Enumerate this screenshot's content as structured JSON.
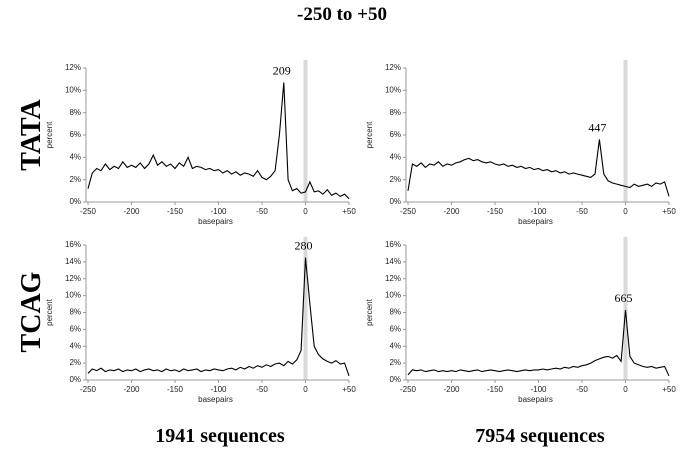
{
  "title": "-250 to +50",
  "row_labels": [
    "TATA",
    "TCAG"
  ],
  "column_labels": [
    "1941 sequences",
    "7954 sequences"
  ],
  "chart_data": [
    {
      "type": "line",
      "xlabel": "basepairs",
      "ylabel": "percent",
      "x": [
        -250,
        -245,
        -240,
        -235,
        -230,
        -225,
        -220,
        -215,
        -210,
        -205,
        -200,
        -195,
        -190,
        -185,
        -180,
        -175,
        -170,
        -165,
        -160,
        -155,
        -150,
        -145,
        -140,
        -135,
        -130,
        -125,
        -120,
        -115,
        -110,
        -105,
        -100,
        -95,
        -90,
        -85,
        -80,
        -75,
        -70,
        -65,
        -60,
        -55,
        -50,
        -45,
        -40,
        -35,
        -30,
        -25,
        -20,
        -15,
        -10,
        -5,
        0,
        5,
        10,
        15,
        20,
        25,
        30,
        35,
        40,
        45,
        50
      ],
      "series": [
        {
          "color": "#000000",
          "values": [
            1.2,
            2.6,
            3.0,
            2.8,
            3.4,
            2.9,
            3.2,
            3.0,
            3.6,
            3.1,
            3.3,
            3.1,
            3.5,
            3.0,
            3.4,
            4.2,
            3.3,
            3.6,
            3.2,
            3.4,
            3.0,
            3.5,
            3.2,
            4.0,
            3.0,
            3.2,
            3.1,
            2.9,
            3.0,
            2.8,
            2.9,
            2.6,
            2.8,
            2.5,
            2.7,
            2.4,
            2.6,
            2.5,
            2.3,
            2.8,
            2.2,
            2.0,
            2.3,
            2.8,
            6.0,
            10.7,
            2.0,
            1.0,
            1.2,
            0.8,
            0.9,
            1.8,
            0.9,
            1.0,
            0.7,
            1.1,
            0.6,
            0.8,
            0.5,
            0.7,
            0.3
          ]
        }
      ],
      "xlim": [
        -250,
        50
      ],
      "xticks": [
        -250,
        -200,
        -150,
        -100,
        -50,
        0,
        {
          "value": 50,
          "label": "+50"
        }
      ],
      "ylim": [
        0,
        12
      ],
      "yticks": [
        {
          "value": 0,
          "label": "0%"
        },
        {
          "value": 2,
          "label": "2%"
        },
        {
          "value": 4,
          "label": "4%"
        },
        {
          "value": 6,
          "label": "6%"
        },
        {
          "value": 8,
          "label": "8%"
        },
        {
          "value": 10,
          "label": "10%"
        },
        {
          "value": 12,
          "label": "12%"
        }
      ],
      "highlight_x": 0,
      "highlight_color": "#d9d9d9",
      "annotations": [
        {
          "text": "209",
          "x": -25,
          "y": 10.7
        }
      ]
    },
    {
      "type": "line",
      "xlabel": "basepairs",
      "ylabel": "percent",
      "x": [
        -250,
        -245,
        -240,
        -235,
        -230,
        -225,
        -220,
        -215,
        -210,
        -205,
        -200,
        -195,
        -190,
        -185,
        -180,
        -175,
        -170,
        -165,
        -160,
        -155,
        -150,
        -145,
        -140,
        -135,
        -130,
        -125,
        -120,
        -115,
        -110,
        -105,
        -100,
        -95,
        -90,
        -85,
        -80,
        -75,
        -70,
        -65,
        -60,
        -55,
        -50,
        -45,
        -40,
        -35,
        -30,
        -25,
        -20,
        -15,
        -10,
        -5,
        0,
        5,
        10,
        15,
        20,
        25,
        30,
        35,
        40,
        45,
        50
      ],
      "series": [
        {
          "color": "#000000",
          "values": [
            1.0,
            3.4,
            3.2,
            3.5,
            3.1,
            3.4,
            3.3,
            3.6,
            3.2,
            3.4,
            3.3,
            3.5,
            3.6,
            3.8,
            3.9,
            3.7,
            3.8,
            3.6,
            3.5,
            3.6,
            3.4,
            3.3,
            3.4,
            3.2,
            3.3,
            3.1,
            3.2,
            3.0,
            3.1,
            2.9,
            3.0,
            2.8,
            2.9,
            2.7,
            2.8,
            2.6,
            2.7,
            2.5,
            2.6,
            2.5,
            2.4,
            2.3,
            2.2,
            2.5,
            5.6,
            2.5,
            1.9,
            1.7,
            1.6,
            1.5,
            1.4,
            1.3,
            1.6,
            1.4,
            1.5,
            1.6,
            1.4,
            1.7,
            1.6,
            1.8,
            0.5
          ]
        }
      ],
      "xlim": [
        -250,
        50
      ],
      "xticks": [
        -250,
        -200,
        -150,
        -100,
        -50,
        0,
        {
          "value": 50,
          "label": "+50"
        }
      ],
      "ylim": [
        0,
        12
      ],
      "yticks": [
        {
          "value": 0,
          "label": "0%"
        },
        {
          "value": 2,
          "label": "2%"
        },
        {
          "value": 4,
          "label": "4%"
        },
        {
          "value": 6,
          "label": "6%"
        },
        {
          "value": 8,
          "label": "8%"
        },
        {
          "value": 10,
          "label": "10%"
        },
        {
          "value": 12,
          "label": "12%"
        }
      ],
      "highlight_x": 0,
      "highlight_color": "#d9d9d9",
      "annotations": [
        {
          "text": "447",
          "x": -30,
          "y": 5.6
        }
      ]
    },
    {
      "type": "line",
      "xlabel": "basepairs",
      "ylabel": "percent",
      "x": [
        -250,
        -245,
        -240,
        -235,
        -230,
        -225,
        -220,
        -215,
        -210,
        -205,
        -200,
        -195,
        -190,
        -185,
        -180,
        -175,
        -170,
        -165,
        -160,
        -155,
        -150,
        -145,
        -140,
        -135,
        -130,
        -125,
        -120,
        -115,
        -110,
        -105,
        -100,
        -95,
        -90,
        -85,
        -80,
        -75,
        -70,
        -65,
        -60,
        -55,
        -50,
        -45,
        -40,
        -35,
        -30,
        -25,
        -20,
        -15,
        -10,
        -5,
        0,
        5,
        10,
        15,
        20,
        25,
        30,
        35,
        40,
        45,
        50
      ],
      "series": [
        {
          "color": "#000000",
          "values": [
            0.8,
            1.3,
            1.1,
            1.4,
            1.0,
            1.2,
            1.1,
            1.3,
            1.0,
            1.2,
            1.1,
            1.3,
            1.0,
            1.2,
            1.3,
            1.1,
            1.2,
            1.0,
            1.3,
            1.1,
            1.2,
            1.0,
            1.3,
            1.1,
            1.2,
            1.3,
            1.0,
            1.2,
            1.1,
            1.3,
            1.2,
            1.1,
            1.3,
            1.4,
            1.2,
            1.5,
            1.3,
            1.6,
            1.4,
            1.7,
            1.5,
            1.8,
            1.6,
            1.9,
            2.0,
            1.7,
            2.2,
            1.9,
            2.4,
            3.5,
            14.5,
            9.0,
            4.0,
            3.0,
            2.5,
            2.2,
            2.0,
            2.3,
            1.9,
            2.0,
            0.5
          ]
        }
      ],
      "xlim": [
        -250,
        50
      ],
      "xticks": [
        -250,
        -200,
        -150,
        -100,
        -50,
        0,
        {
          "value": 50,
          "label": "+50"
        }
      ],
      "ylim": [
        0,
        16
      ],
      "yticks": [
        {
          "value": 0,
          "label": "0%"
        },
        {
          "value": 2,
          "label": "2%"
        },
        {
          "value": 4,
          "label": "4%"
        },
        {
          "value": 6,
          "label": "6%"
        },
        {
          "value": 8,
          "label": "8%"
        },
        {
          "value": 10,
          "label": "10%"
        },
        {
          "value": 12,
          "label": "12%"
        },
        {
          "value": 14,
          "label": "14%"
        },
        {
          "value": 16,
          "label": "16%"
        }
      ],
      "highlight_x": 0,
      "highlight_color": "#d9d9d9",
      "annotations": [
        {
          "text": "280",
          "x": 0,
          "y": 14.5
        }
      ]
    },
    {
      "type": "line",
      "xlabel": "basepairs",
      "ylabel": "percent",
      "x": [
        -250,
        -245,
        -240,
        -235,
        -230,
        -225,
        -220,
        -215,
        -210,
        -205,
        -200,
        -195,
        -190,
        -185,
        -180,
        -175,
        -170,
        -165,
        -160,
        -155,
        -150,
        -145,
        -140,
        -135,
        -130,
        -125,
        -120,
        -115,
        -110,
        -105,
        -100,
        -95,
        -90,
        -85,
        -80,
        -75,
        -70,
        -65,
        -60,
        -55,
        -50,
        -45,
        -40,
        -35,
        -30,
        -25,
        -20,
        -15,
        -10,
        -5,
        0,
        5,
        10,
        15,
        20,
        25,
        30,
        35,
        40,
        45,
        50
      ],
      "series": [
        {
          "color": "#000000",
          "values": [
            0.6,
            1.2,
            1.1,
            1.2,
            1.0,
            1.1,
            1.2,
            1.0,
            1.1,
            1.0,
            1.1,
            1.0,
            1.2,
            1.1,
            1.0,
            1.1,
            1.2,
            1.0,
            1.1,
            1.2,
            1.1,
            1.0,
            1.1,
            1.2,
            1.1,
            1.0,
            1.1,
            1.2,
            1.1,
            1.2,
            1.2,
            1.3,
            1.2,
            1.3,
            1.4,
            1.3,
            1.5,
            1.4,
            1.6,
            1.5,
            1.7,
            1.8,
            2.0,
            2.3,
            2.5,
            2.7,
            2.8,
            2.6,
            2.9,
            2.2,
            8.3,
            2.8,
            2.0,
            1.8,
            1.6,
            1.5,
            1.6,
            1.4,
            1.5,
            1.6,
            0.5
          ]
        }
      ],
      "xlim": [
        -250,
        50
      ],
      "xticks": [
        -250,
        -200,
        -150,
        -100,
        -50,
        0,
        {
          "value": 50,
          "label": "+50"
        }
      ],
      "ylim": [
        0,
        16
      ],
      "yticks": [
        {
          "value": 0,
          "label": "0%"
        },
        {
          "value": 2,
          "label": "2%"
        },
        {
          "value": 4,
          "label": "4%"
        },
        {
          "value": 6,
          "label": "6%"
        },
        {
          "value": 8,
          "label": "8%"
        },
        {
          "value": 10,
          "label": "10%"
        },
        {
          "value": 12,
          "label": "12%"
        },
        {
          "value": 14,
          "label": "14%"
        },
        {
          "value": 16,
          "label": "16%"
        }
      ],
      "highlight_x": 0,
      "highlight_color": "#d9d9d9",
      "annotations": [
        {
          "text": "665",
          "x": 0,
          "y": 8.3
        }
      ]
    }
  ]
}
